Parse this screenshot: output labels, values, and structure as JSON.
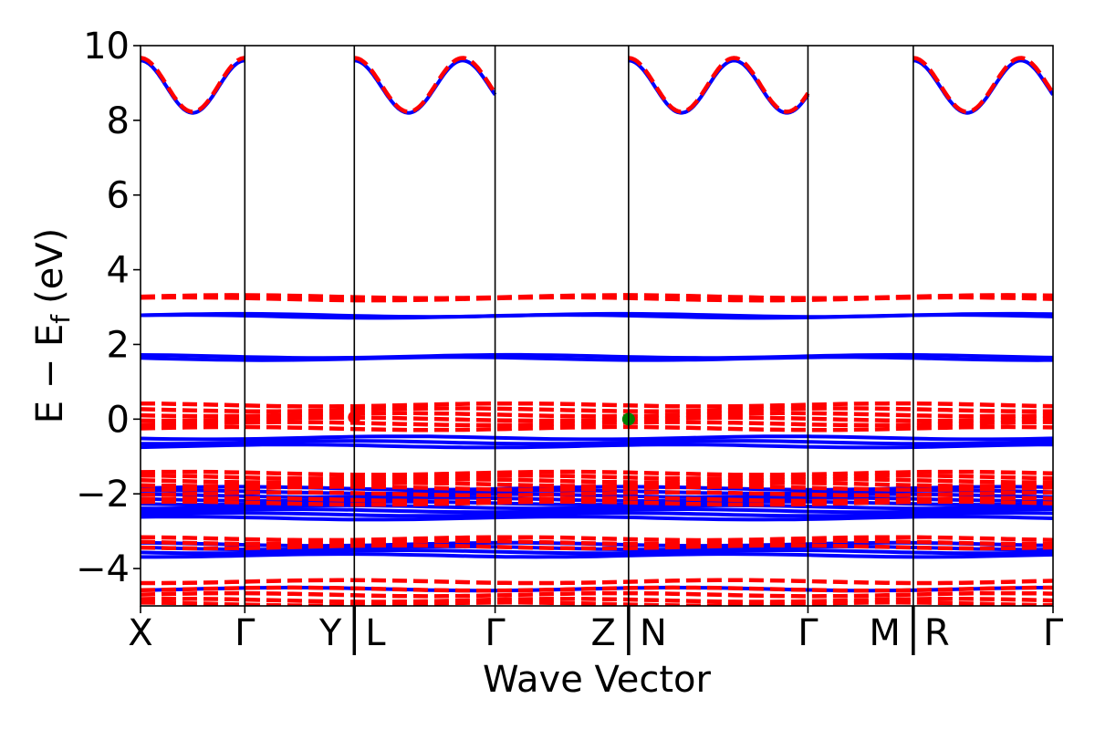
{
  "chart_data": {
    "type": "line",
    "xlabel": "Wave Vector",
    "ylabel_parts": {
      "main": "E − E",
      "sub": "f",
      "unit": "(eV)"
    },
    "ylim": [
      -5,
      10
    ],
    "y_ticks": [
      -4,
      -2,
      0,
      2,
      4,
      6,
      8,
      10
    ],
    "y_tick_labels": [
      "−4",
      "−2",
      "0",
      "2",
      "4",
      "6",
      "8",
      "10"
    ],
    "x_range": [
      0,
      8.75
    ],
    "high_symmetry_points": [
      {
        "x": 0.0,
        "label": "X",
        "boundary": false
      },
      {
        "x": 1.0,
        "label": "Γ",
        "boundary": false
      },
      {
        "x": 2.05,
        "label": "Y | L",
        "boundary": true
      },
      {
        "x": 3.4,
        "label": "Γ",
        "boundary": false
      },
      {
        "x": 4.68,
        "label": "Z | N",
        "boundary": true
      },
      {
        "x": 6.4,
        "label": "Γ",
        "boundary": false
      },
      {
        "x": 7.41,
        "label": "M | R",
        "boundary": true
      },
      {
        "x": 8.75,
        "label": "Γ",
        "boundary": false
      }
    ],
    "series": [
      {
        "style": "solid",
        "color": "#0000ff",
        "bands": [
          {
            "type": "cos",
            "center": 8.9,
            "amp": 0.7,
            "segments": [
              [
                0.0,
                1.0,
                2.0,
                0.0
              ],
              [
                2.05,
                3.4,
                2.6,
                0.0
              ],
              [
                4.68,
                6.4,
                3.4,
                0.0
              ],
              [
                7.41,
                8.75,
                2.6,
                0.0
              ]
            ]
          },
          {
            "type": "flat",
            "values": [
              2.78,
              2.75,
              1.68,
              1.62,
              -0.5,
              -0.62,
              -0.72,
              -1.85,
              -1.95,
              -2.05,
              -2.15,
              -2.25,
              -2.35,
              -2.45,
              -2.55,
              -2.65,
              -3.35,
              -3.45,
              -3.55,
              -3.65,
              -4.55
            ]
          }
        ]
      },
      {
        "style": "dashed",
        "color": "#ff0000",
        "bands": [
          {
            "type": "cos",
            "center": 8.95,
            "amp": 0.72,
            "segments": [
              [
                0.0,
                1.0,
                2.0,
                0.0
              ],
              [
                2.05,
                3.4,
                2.6,
                0.0
              ],
              [
                4.68,
                6.4,
                3.4,
                0.0
              ],
              [
                7.41,
                8.75,
                2.6,
                0.0
              ]
            ]
          },
          {
            "type": "flat",
            "values": [
              3.28,
              3.22,
              0.38,
              0.25,
              0.12,
              0.0,
              -0.12,
              -0.25,
              -1.45,
              -1.55,
              -1.65,
              -1.75,
              -1.85,
              -2.0,
              -2.15,
              -2.25,
              -3.2,
              -3.3,
              -3.42,
              -4.35,
              -4.55,
              -4.7,
              -4.85,
              -4.95
            ]
          }
        ]
      }
    ],
    "markers": [
      {
        "x": 2.05,
        "y": 0.05,
        "color": "#ff0000"
      },
      {
        "x": 4.68,
        "y": 0.0,
        "color": "#008000"
      }
    ]
  }
}
